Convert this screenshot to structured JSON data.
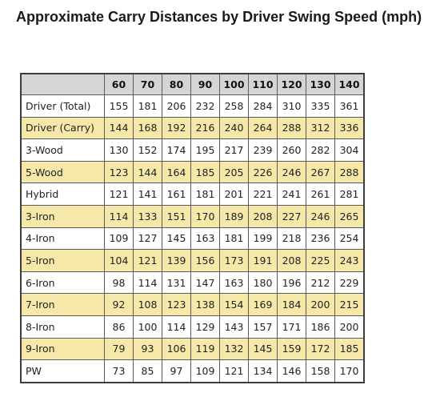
{
  "chart_data": {
    "type": "table",
    "title": "Approximate Carry Distances by Driver Swing Speed (mph)",
    "columns": [
      "60",
      "70",
      "80",
      "90",
      "100",
      "110",
      "120",
      "130",
      "140"
    ],
    "rows": [
      {
        "club": "Driver (Total)",
        "values": [
          155,
          181,
          206,
          232,
          258,
          284,
          310,
          335,
          361
        ]
      },
      {
        "club": "Driver (Carry)",
        "values": [
          144,
          168,
          192,
          216,
          240,
          264,
          288,
          312,
          336
        ]
      },
      {
        "club": "3-Wood",
        "values": [
          130,
          152,
          174,
          195,
          217,
          239,
          260,
          282,
          304
        ]
      },
      {
        "club": "5-Wood",
        "values": [
          123,
          144,
          164,
          185,
          205,
          226,
          246,
          267,
          288
        ]
      },
      {
        "club": "Hybrid",
        "values": [
          121,
          141,
          161,
          181,
          201,
          221,
          241,
          261,
          281
        ]
      },
      {
        "club": "3-Iron",
        "values": [
          114,
          133,
          151,
          170,
          189,
          208,
          227,
          246,
          265
        ]
      },
      {
        "club": "4-Iron",
        "values": [
          109,
          127,
          145,
          163,
          181,
          199,
          218,
          236,
          254
        ]
      },
      {
        "club": "5-Iron",
        "values": [
          104,
          121,
          139,
          156,
          173,
          191,
          208,
          225,
          243
        ]
      },
      {
        "club": "6-Iron",
        "values": [
          98,
          114,
          131,
          147,
          163,
          180,
          196,
          212,
          229
        ]
      },
      {
        "club": "7-Iron",
        "values": [
          92,
          108,
          123,
          138,
          154,
          169,
          184,
          200,
          215
        ]
      },
      {
        "club": "8-Iron",
        "values": [
          86,
          100,
          114,
          129,
          143,
          157,
          171,
          186,
          200
        ]
      },
      {
        "club": "9-Iron",
        "values": [
          79,
          93,
          106,
          119,
          132,
          145,
          159,
          172,
          185
        ]
      },
      {
        "club": "PW",
        "values": [
          73,
          85,
          97,
          109,
          121,
          134,
          146,
          158,
          170
        ]
      }
    ]
  },
  "colors": {
    "header_bg": "#d5d5d5",
    "band_bg": "#f5e8a8",
    "plain_bg": "#ffffff",
    "grid": "#5a5a5a"
  }
}
